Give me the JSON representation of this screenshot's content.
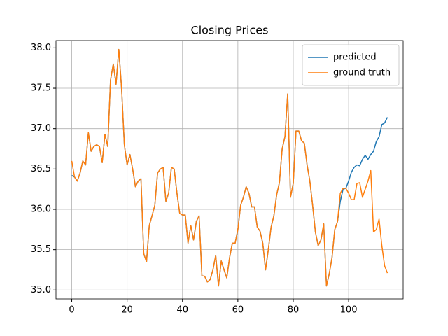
{
  "chart_data": {
    "type": "line",
    "title": "Closing Prices",
    "x": [
      0,
      1,
      2,
      3,
      4,
      5,
      6,
      7,
      8,
      9,
      10,
      11,
      12,
      13,
      14,
      15,
      16,
      17,
      18,
      19,
      20,
      21,
      22,
      23,
      24,
      25,
      26,
      27,
      28,
      29,
      30,
      31,
      32,
      33,
      34,
      35,
      36,
      37,
      38,
      39,
      40,
      41,
      42,
      43,
      44,
      45,
      46,
      47,
      48,
      49,
      50,
      51,
      52,
      53,
      54,
      55,
      56,
      57,
      58,
      59,
      60,
      61,
      62,
      63,
      64,
      65,
      66,
      67,
      68,
      69,
      70,
      71,
      72,
      73,
      74,
      75,
      76,
      77,
      78,
      79,
      80,
      81,
      82,
      83,
      84,
      85,
      86,
      87,
      88,
      89,
      90,
      91,
      92,
      93,
      94,
      95,
      96,
      97,
      98,
      99,
      100,
      101,
      102,
      103,
      104,
      105,
      106,
      107,
      108,
      109,
      110,
      111,
      112,
      113,
      114
    ],
    "series": [
      {
        "name": "predicted",
        "color": "#1f77b4",
        "values": [
          36.42,
          36.4,
          36.35,
          36.45,
          36.6,
          36.55,
          36.95,
          36.72,
          36.78,
          36.8,
          36.78,
          36.58,
          36.93,
          36.78,
          37.6,
          37.8,
          37.55,
          37.98,
          37.5,
          36.8,
          36.55,
          36.68,
          36.5,
          36.28,
          36.35,
          36.38,
          35.45,
          35.35,
          35.8,
          35.92,
          36.05,
          36.45,
          36.5,
          36.52,
          36.1,
          36.2,
          36.52,
          36.5,
          36.2,
          35.95,
          35.93,
          35.93,
          35.58,
          35.8,
          35.62,
          35.85,
          35.92,
          35.18,
          35.17,
          35.1,
          35.13,
          35.25,
          35.43,
          35.05,
          35.36,
          35.25,
          35.15,
          35.4,
          35.58,
          35.58,
          35.75,
          36.05,
          36.15,
          36.28,
          36.2,
          36.03,
          36.03,
          35.78,
          35.73,
          35.58,
          35.25,
          35.5,
          35.78,
          35.92,
          36.18,
          36.33,
          36.75,
          36.9,
          37.43,
          36.15,
          36.32,
          36.97,
          36.97,
          36.85,
          36.82,
          36.55,
          36.35,
          36.05,
          35.72,
          35.55,
          35.62,
          35.82,
          35.05,
          35.2,
          35.4,
          35.75,
          35.85,
          36.1,
          36.25,
          36.26,
          36.35,
          36.46,
          36.52,
          36.55,
          36.54,
          36.62,
          36.67,
          36.62,
          36.68,
          36.72,
          36.84,
          36.9,
          37.05,
          37.07,
          37.14
        ]
      },
      {
        "name": "ground truth",
        "color": "#ff7f0e",
        "values": [
          36.6,
          36.4,
          36.35,
          36.45,
          36.6,
          36.55,
          36.95,
          36.72,
          36.78,
          36.8,
          36.78,
          36.58,
          36.93,
          36.78,
          37.6,
          37.8,
          37.55,
          37.98,
          37.5,
          36.8,
          36.55,
          36.68,
          36.5,
          36.28,
          36.35,
          36.38,
          35.45,
          35.35,
          35.8,
          35.92,
          36.05,
          36.45,
          36.5,
          36.52,
          36.1,
          36.2,
          36.52,
          36.5,
          36.2,
          35.95,
          35.93,
          35.93,
          35.58,
          35.8,
          35.62,
          35.85,
          35.92,
          35.18,
          35.17,
          35.1,
          35.13,
          35.25,
          35.43,
          35.05,
          35.36,
          35.25,
          35.15,
          35.4,
          35.58,
          35.58,
          35.75,
          36.05,
          36.15,
          36.28,
          36.2,
          36.03,
          36.03,
          35.78,
          35.73,
          35.58,
          35.25,
          35.5,
          35.78,
          35.92,
          36.18,
          36.33,
          36.75,
          36.9,
          37.43,
          36.15,
          36.32,
          36.97,
          36.97,
          36.85,
          36.82,
          36.55,
          36.35,
          36.05,
          35.72,
          35.55,
          35.62,
          35.82,
          35.05,
          35.2,
          35.4,
          35.75,
          35.85,
          36.2,
          36.26,
          36.26,
          36.2,
          36.12,
          36.12,
          36.32,
          36.33,
          36.15,
          36.25,
          36.35,
          36.48,
          35.72,
          35.75,
          35.88,
          35.55,
          35.3,
          35.21
        ]
      }
    ],
    "xlim": [
      -5.7,
      119.7
    ],
    "xticks": [
      0,
      20,
      40,
      60,
      80,
      100
    ],
    "ylim": [
      34.89,
      38.09
    ],
    "yticks": [
      {
        "value": 35,
        "label": "35.0"
      },
      {
        "value": 35.5,
        "label": "35.5"
      },
      {
        "value": 36,
        "label": "36.0"
      },
      {
        "value": 36.5,
        "label": "36.5"
      },
      {
        "value": 37,
        "label": "37.0"
      },
      {
        "value": 37.5,
        "label": "37.5"
      },
      {
        "value": 38,
        "label": "38.0"
      }
    ],
    "grid": true,
    "legend": "upper right"
  }
}
